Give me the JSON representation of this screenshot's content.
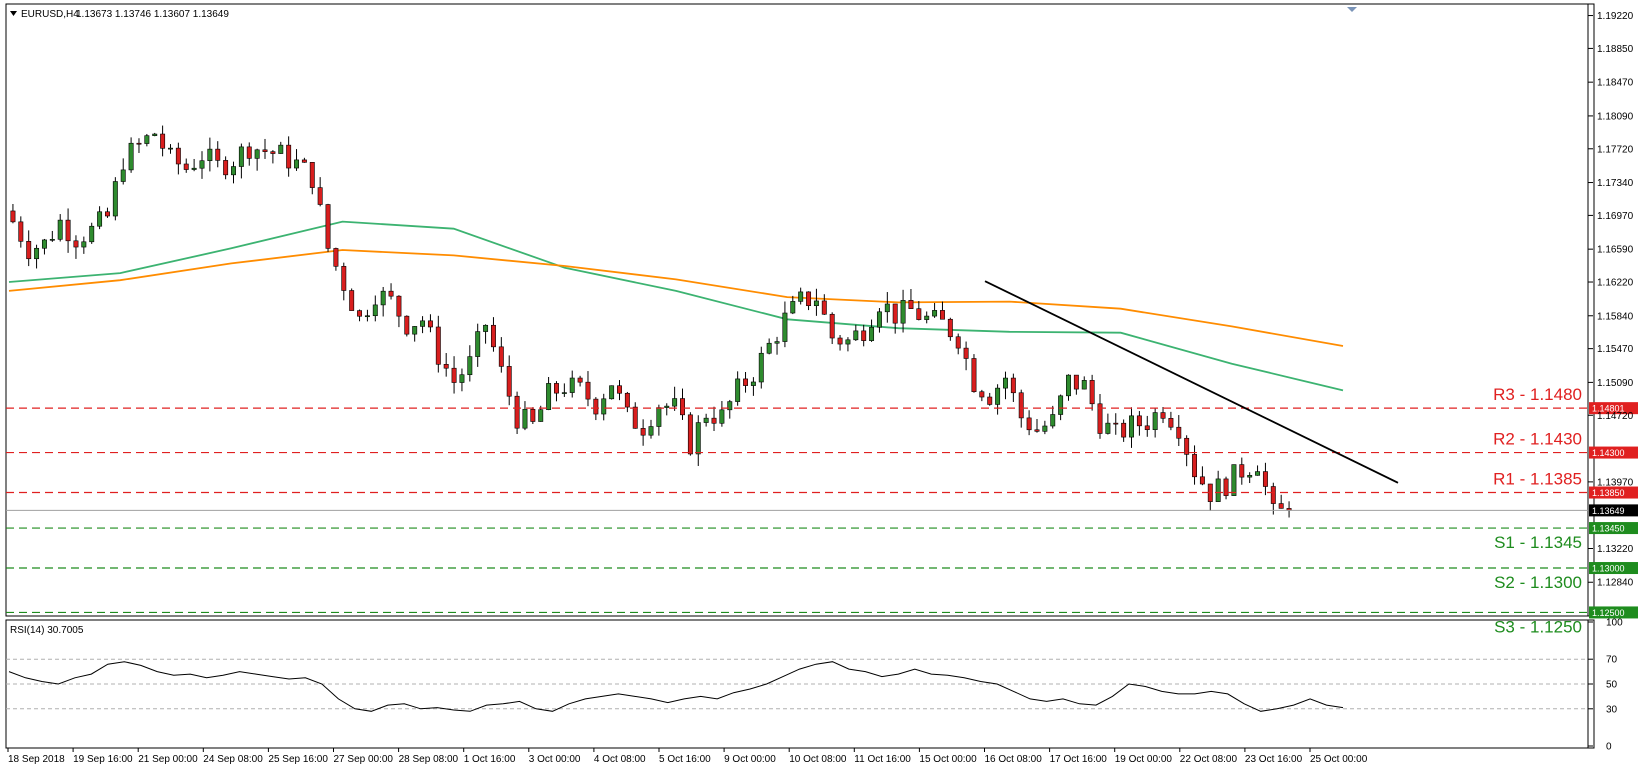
{
  "header": {
    "symbol": "EURUSD,H4",
    "ohlc": "1.13673 1.13746 1.13607 1.13649"
  },
  "rsi_panel": {
    "label": "RSI(14) 30.7005"
  },
  "colors": {
    "bull": "#2e8b2e",
    "bear": "#d81e1e",
    "ma_fast": "#3cb371",
    "ma_slow": "#ff8c00",
    "resistance": "#e02020",
    "support": "#1e8c1e",
    "trendline": "#000000",
    "current": "#a0a0a0"
  },
  "chart_data": [
    {
      "type": "candlestick",
      "title": "",
      "x_labels": [
        "18 Sep 2018",
        "19 Sep 16:00",
        "21 Sep 00:00",
        "24 Sep 08:00",
        "25 Sep 16:00",
        "27 Sep 00:00",
        "28 Sep 08:00",
        "1 Oct 16:00",
        "3 Oct 00:00",
        "4 Oct 08:00",
        "5 Oct 16:00",
        "9 Oct 00:00",
        "10 Oct 08:00",
        "11 Oct 16:00",
        "15 Oct 00:00",
        "16 Oct 08:00",
        "17 Oct 16:00",
        "19 Oct 00:00",
        "22 Oct 08:00",
        "23 Oct 16:00",
        "25 Oct 00:00"
      ],
      "y_ticks": [
        "1.19220",
        "1.18850",
        "1.18470",
        "1.18090",
        "1.17720",
        "1.17340",
        "1.16970",
        "1.16590",
        "1.16220",
        "1.15840",
        "1.15470",
        "1.15090",
        "1.14720",
        "1.13970",
        "1.13220",
        "1.12840"
      ],
      "ylim": [
        1.1246,
        1.1935
      ],
      "grid": false,
      "close_path": [
        1.169,
        1.166,
        1.1665,
        1.169,
        1.1672,
        1.168,
        1.1695,
        1.176,
        1.1775,
        1.179,
        1.176,
        1.175,
        1.1765,
        1.1752,
        1.176,
        1.1775,
        1.177,
        1.1765,
        1.1755,
        1.174,
        1.166,
        1.162,
        1.158,
        1.161,
        1.16,
        1.1575,
        1.158,
        1.154,
        1.151,
        1.153,
        1.1575,
        1.152,
        1.147,
        1.146,
        1.1495,
        1.1505,
        1.15,
        1.1485,
        1.151,
        1.147,
        1.146,
        1.1485,
        1.148,
        1.144,
        1.1475,
        1.147,
        1.15,
        1.152,
        1.155,
        1.158,
        1.16,
        1.1605,
        1.156,
        1.1555,
        1.157,
        1.16,
        1.1585,
        1.159,
        1.158,
        1.1575,
        1.156,
        1.151,
        1.1495,
        1.1515,
        1.147,
        1.1455,
        1.1465,
        1.151,
        1.1505,
        1.1465,
        1.145,
        1.146,
        1.1465,
        1.148,
        1.146,
        1.141,
        1.1385,
        1.1395,
        1.141,
        1.142,
        1.136,
        1.1365
      ],
      "ma": [
        {
          "name": "",
          "color": "ma_fast",
          "values": [
            1.1622,
            1.1632,
            1.166,
            1.169,
            1.1682,
            1.1638,
            1.1612,
            1.158,
            1.157,
            1.1566,
            1.1565,
            1.153,
            1.15
          ]
        },
        {
          "name": "",
          "color": "ma_slow",
          "values": [
            1.1612,
            1.1624,
            1.1643,
            1.1658,
            1.1652,
            1.164,
            1.1625,
            1.1605,
            1.1599,
            1.16,
            1.1592,
            1.1572,
            1.155
          ]
        }
      ],
      "trendline": {
        "from": 1.1623,
        "to": 1.1396
      },
      "current_price": 1.13649,
      "current_price_label": "1.13649",
      "levels": [
        {
          "name": "R3 - 1.1480",
          "value": 1.148,
          "badge": "1.14801",
          "kind": "resistance"
        },
        {
          "name": "R2 - 1.1430",
          "value": 1.143,
          "badge": "1.14300",
          "kind": "resistance"
        },
        {
          "name": "R1 - 1.1385",
          "value": 1.1385,
          "badge": "1.13850",
          "kind": "resistance"
        },
        {
          "name": "S1 - 1.1345",
          "value": 1.1345,
          "badge": "1.13450",
          "kind": "support"
        },
        {
          "name": "S2 - 1.1300",
          "value": 1.13,
          "badge": "1.13000",
          "kind": "support"
        },
        {
          "name": "S3 - 1.1250",
          "value": 1.125,
          "badge": "1.12500",
          "kind": "support"
        }
      ]
    },
    {
      "type": "line",
      "title": "",
      "ylim": [
        0,
        100
      ],
      "y_ticks": [
        "100",
        "70",
        "50",
        "30",
        "0"
      ],
      "levels": [
        70,
        50,
        30
      ],
      "series": [
        {
          "name": "",
          "values": [
            60,
            55,
            52,
            50,
            55,
            58,
            66,
            68,
            65,
            60,
            57,
            58,
            55,
            57,
            60,
            58,
            56,
            54,
            55,
            50,
            38,
            30,
            28,
            33,
            34,
            30,
            31,
            29,
            28,
            33,
            34,
            36,
            30,
            28,
            34,
            38,
            40,
            42,
            40,
            38,
            35,
            38,
            40,
            38,
            43,
            46,
            50,
            56,
            62,
            66,
            68,
            62,
            60,
            56,
            58,
            62,
            58,
            57,
            55,
            52,
            50,
            44,
            38,
            36,
            38,
            34,
            33,
            40,
            50,
            48,
            44,
            42,
            42,
            44,
            42,
            34,
            28,
            30,
            33,
            38,
            33,
            31
          ]
        }
      ]
    }
  ]
}
